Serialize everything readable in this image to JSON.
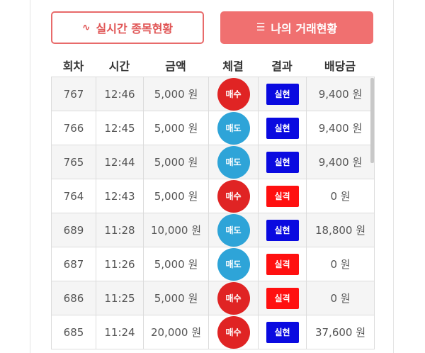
{
  "buttons": [
    "실시간 종목현황",
    "나의 거래현황"
  ],
  "table": {
    "headers": [
      "회차",
      "시간",
      "금액",
      "체결",
      "결과",
      "배당금"
    ],
    "rows": [
      [
        "767",
        "12:46",
        "5,000 원",
        "매수",
        "실현",
        "9,400 원"
      ],
      [
        "766",
        "12:45",
        "5,000 원",
        "매도",
        "실현",
        "9,400 원"
      ],
      [
        "765",
        "12:44",
        "5,000 원",
        "매도",
        "실현",
        "9,400 원"
      ],
      [
        "764",
        "12:43",
        "5,000 원",
        "매수",
        "실격",
        "0 원"
      ],
      [
        "689",
        "11:28",
        "10,000 원",
        "매도",
        "실현",
        "18,800 원"
      ],
      [
        "687",
        "11:26",
        "5,000 원",
        "매도",
        "실격",
        "0 원"
      ],
      [
        "686",
        "11:25",
        "5,000 원",
        "매수",
        "실격",
        "0 원"
      ],
      [
        "685",
        "11:24",
        "20,000 원",
        "매수",
        "실현",
        "37,600 원"
      ]
    ]
  }
}
